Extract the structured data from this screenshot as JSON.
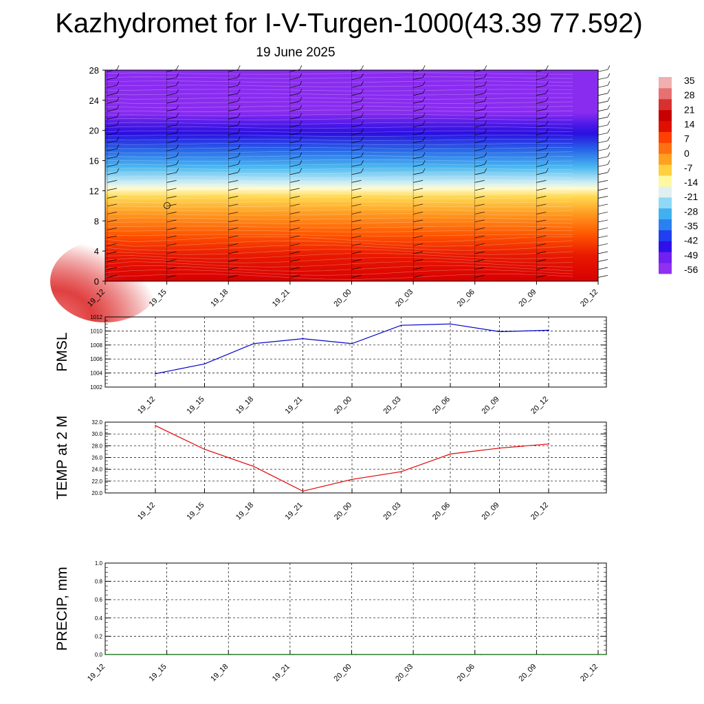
{
  "header": {
    "title": "Kazhydromet for I-V-Turgen-1000(43.39 77.592)",
    "subtitle": "19 June 2025"
  },
  "colors": {
    "pmsl_line": "#0000cc",
    "temp_line": "#e00000",
    "precip_line": "#006400",
    "colorbar": [
      "#9030f0",
      "#7020f0",
      "#3010e8",
      "#2040f0",
      "#2a80f0",
      "#40b0f0",
      "#90d8f5",
      "#e0f0f0",
      "#fff8a0",
      "#ffd040",
      "#ffa020",
      "#ff7010",
      "#ff4000",
      "#e01000",
      "#c80000",
      "#d83030",
      "#e87070",
      "#f0b0b0"
    ]
  },
  "chart_data": [
    {
      "type": "heatmap",
      "title": "",
      "xlabel": "",
      "ylabel": "",
      "x_tick_labels": [
        "19_12",
        "19_15",
        "19_18",
        "19_21",
        "20_00",
        "20_03",
        "20_06",
        "20_09",
        "20_12"
      ],
      "y_ticks": [
        0,
        4,
        8,
        12,
        16,
        20,
        24,
        28
      ],
      "ylim": [
        0,
        28
      ],
      "colorbar_labels": [
        "35",
        "28",
        "21",
        "14",
        "7",
        "0",
        "-7",
        "-14",
        "-21",
        "-28",
        "-35",
        "-42",
        "-49",
        "-56"
      ],
      "temperature_by_level": [
        {
          "level": 0,
          "value": 30
        },
        {
          "level": 4,
          "value": 24
        },
        {
          "level": 8,
          "value": 10
        },
        {
          "level": 12,
          "value": -14
        },
        {
          "level": 16,
          "value": -35
        },
        {
          "level": 20,
          "value": -56
        },
        {
          "level": 24,
          "value": -60
        },
        {
          "level": 28,
          "value": -60
        }
      ]
    },
    {
      "type": "line",
      "ylabel": "PMSL",
      "x_tick_labels": [
        "19_12",
        "19_15",
        "19_18",
        "19_21",
        "20_00",
        "20_03",
        "20_06",
        "20_09",
        "20_12"
      ],
      "y_tick_labels": [
        "1002",
        "1004",
        "1006",
        "1008",
        "1010",
        "1012"
      ],
      "ylim": [
        1002,
        1012
      ],
      "grid": true,
      "series": [
        {
          "values": [
            1003.9,
            1005.3,
            1008.2,
            1008.9,
            1008.2,
            1010.8,
            1011.0,
            1009.9,
            1010.1
          ]
        }
      ]
    },
    {
      "type": "line",
      "ylabel": "TEMP at 2 M",
      "x_tick_labels": [
        "19_12",
        "19_15",
        "19_18",
        "19_21",
        "20_00",
        "20_03",
        "20_06",
        "20_09",
        "20_12"
      ],
      "y_tick_labels": [
        "20.0",
        "22.0",
        "24.0",
        "26.0",
        "28.0",
        "30.0",
        "32.0"
      ],
      "ylim": [
        20,
        32
      ],
      "grid": true,
      "series": [
        {
          "values": [
            31.4,
            27.4,
            24.5,
            20.3,
            22.3,
            23.6,
            26.6,
            27.6,
            28.3
          ]
        }
      ]
    },
    {
      "type": "line",
      "ylabel": "PRECIP, mm",
      "x_tick_labels": [
        "19_12",
        "19_15",
        "19_18",
        "19_21",
        "20_00",
        "20_03",
        "20_06",
        "20_09",
        "20_12"
      ],
      "y_tick_labels": [
        "0.0",
        "0.2",
        "0.4",
        "0.6",
        "0.8",
        "1.0"
      ],
      "ylim": [
        0,
        1
      ],
      "grid": true,
      "series": [
        {
          "values": [
            0,
            0,
            0,
            0,
            0,
            0,
            0,
            0,
            0
          ]
        }
      ]
    }
  ]
}
